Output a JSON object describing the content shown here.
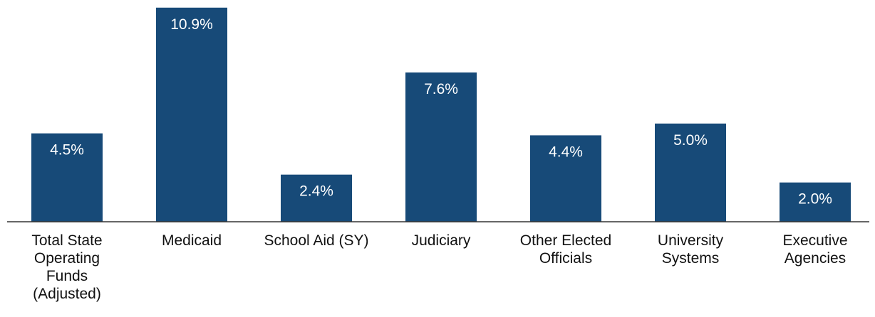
{
  "chart_data": {
    "type": "bar",
    "categories": [
      "Total State Operating Funds (Adjusted)",
      "Medicaid",
      "School Aid (SY)",
      "Judiciary",
      "Other Elected Officials",
      "University Systems",
      "Executive Agencies"
    ],
    "category_lines": [
      [
        "Total State",
        "Operating",
        "Funds",
        "(Adjusted)"
      ],
      [
        "Medicaid"
      ],
      [
        "School Aid (SY)"
      ],
      [
        "Judiciary"
      ],
      [
        "Other Elected",
        "Officials"
      ],
      [
        "University",
        "Systems"
      ],
      [
        "Executive",
        "Agencies"
      ]
    ],
    "values": [
      4.5,
      10.9,
      2.4,
      7.6,
      4.4,
      5.0,
      2.0
    ],
    "data_labels": [
      "4.5%",
      "10.9%",
      "2.4%",
      "7.6%",
      "4.4%",
      "5.0%",
      "2.0%"
    ],
    "ylim": [
      0,
      11
    ],
    "grid": false,
    "bar_color": "#174a78",
    "axis_color": "#333333",
    "label_color": "#ffffff",
    "text_color": "#111111"
  }
}
